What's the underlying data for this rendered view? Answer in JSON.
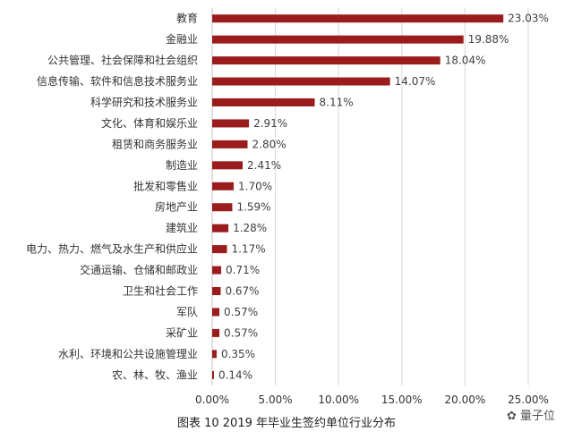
{
  "chart_data": {
    "type": "bar",
    "orientation": "horizontal",
    "categories": [
      "教育",
      "金融业",
      "公共管理、社会保障和社会组织",
      "信息传输、软件和信息技术服务业",
      "科学研究和技术服务业",
      "文化、体育和娱乐业",
      "租赁和商务服务业",
      "制造业",
      "批发和零售业",
      "房地产业",
      "建筑业",
      "电力、热力、燃气及水生产和供应业",
      "交通运输、仓储和邮政业",
      "卫生和社会工作",
      "军队",
      "采矿业",
      "水利、环境和公共设施管理业",
      "农、林、牧、渔业"
    ],
    "values": [
      23.03,
      19.88,
      18.04,
      14.07,
      8.11,
      2.91,
      2.8,
      2.41,
      1.7,
      1.59,
      1.28,
      1.17,
      0.71,
      0.67,
      0.57,
      0.57,
      0.35,
      0.14
    ],
    "data_labels": [
      "23.03%",
      "19.88%",
      "18.04%",
      "14.07%",
      "8.11%",
      "2.91%",
      "2.80%",
      "2.41%",
      "1.70%",
      "1.59%",
      "1.28%",
      "1.17%",
      "0.71%",
      "0.67%",
      "0.57%",
      "0.57%",
      "0.35%",
      "0.14%"
    ],
    "xlim": [
      0,
      25
    ],
    "xticks": [
      0,
      5,
      10,
      15,
      20,
      25
    ],
    "xtick_labels": [
      "0.00%",
      "5.00%",
      "10.00%",
      "15.00%",
      "20.00%",
      "25.00%"
    ],
    "grid": "vertical",
    "bar_color": "#9b1c1c",
    "caption": "图表 10  2019 年毕业生签约单位行业分布"
  },
  "watermark": "量子位"
}
